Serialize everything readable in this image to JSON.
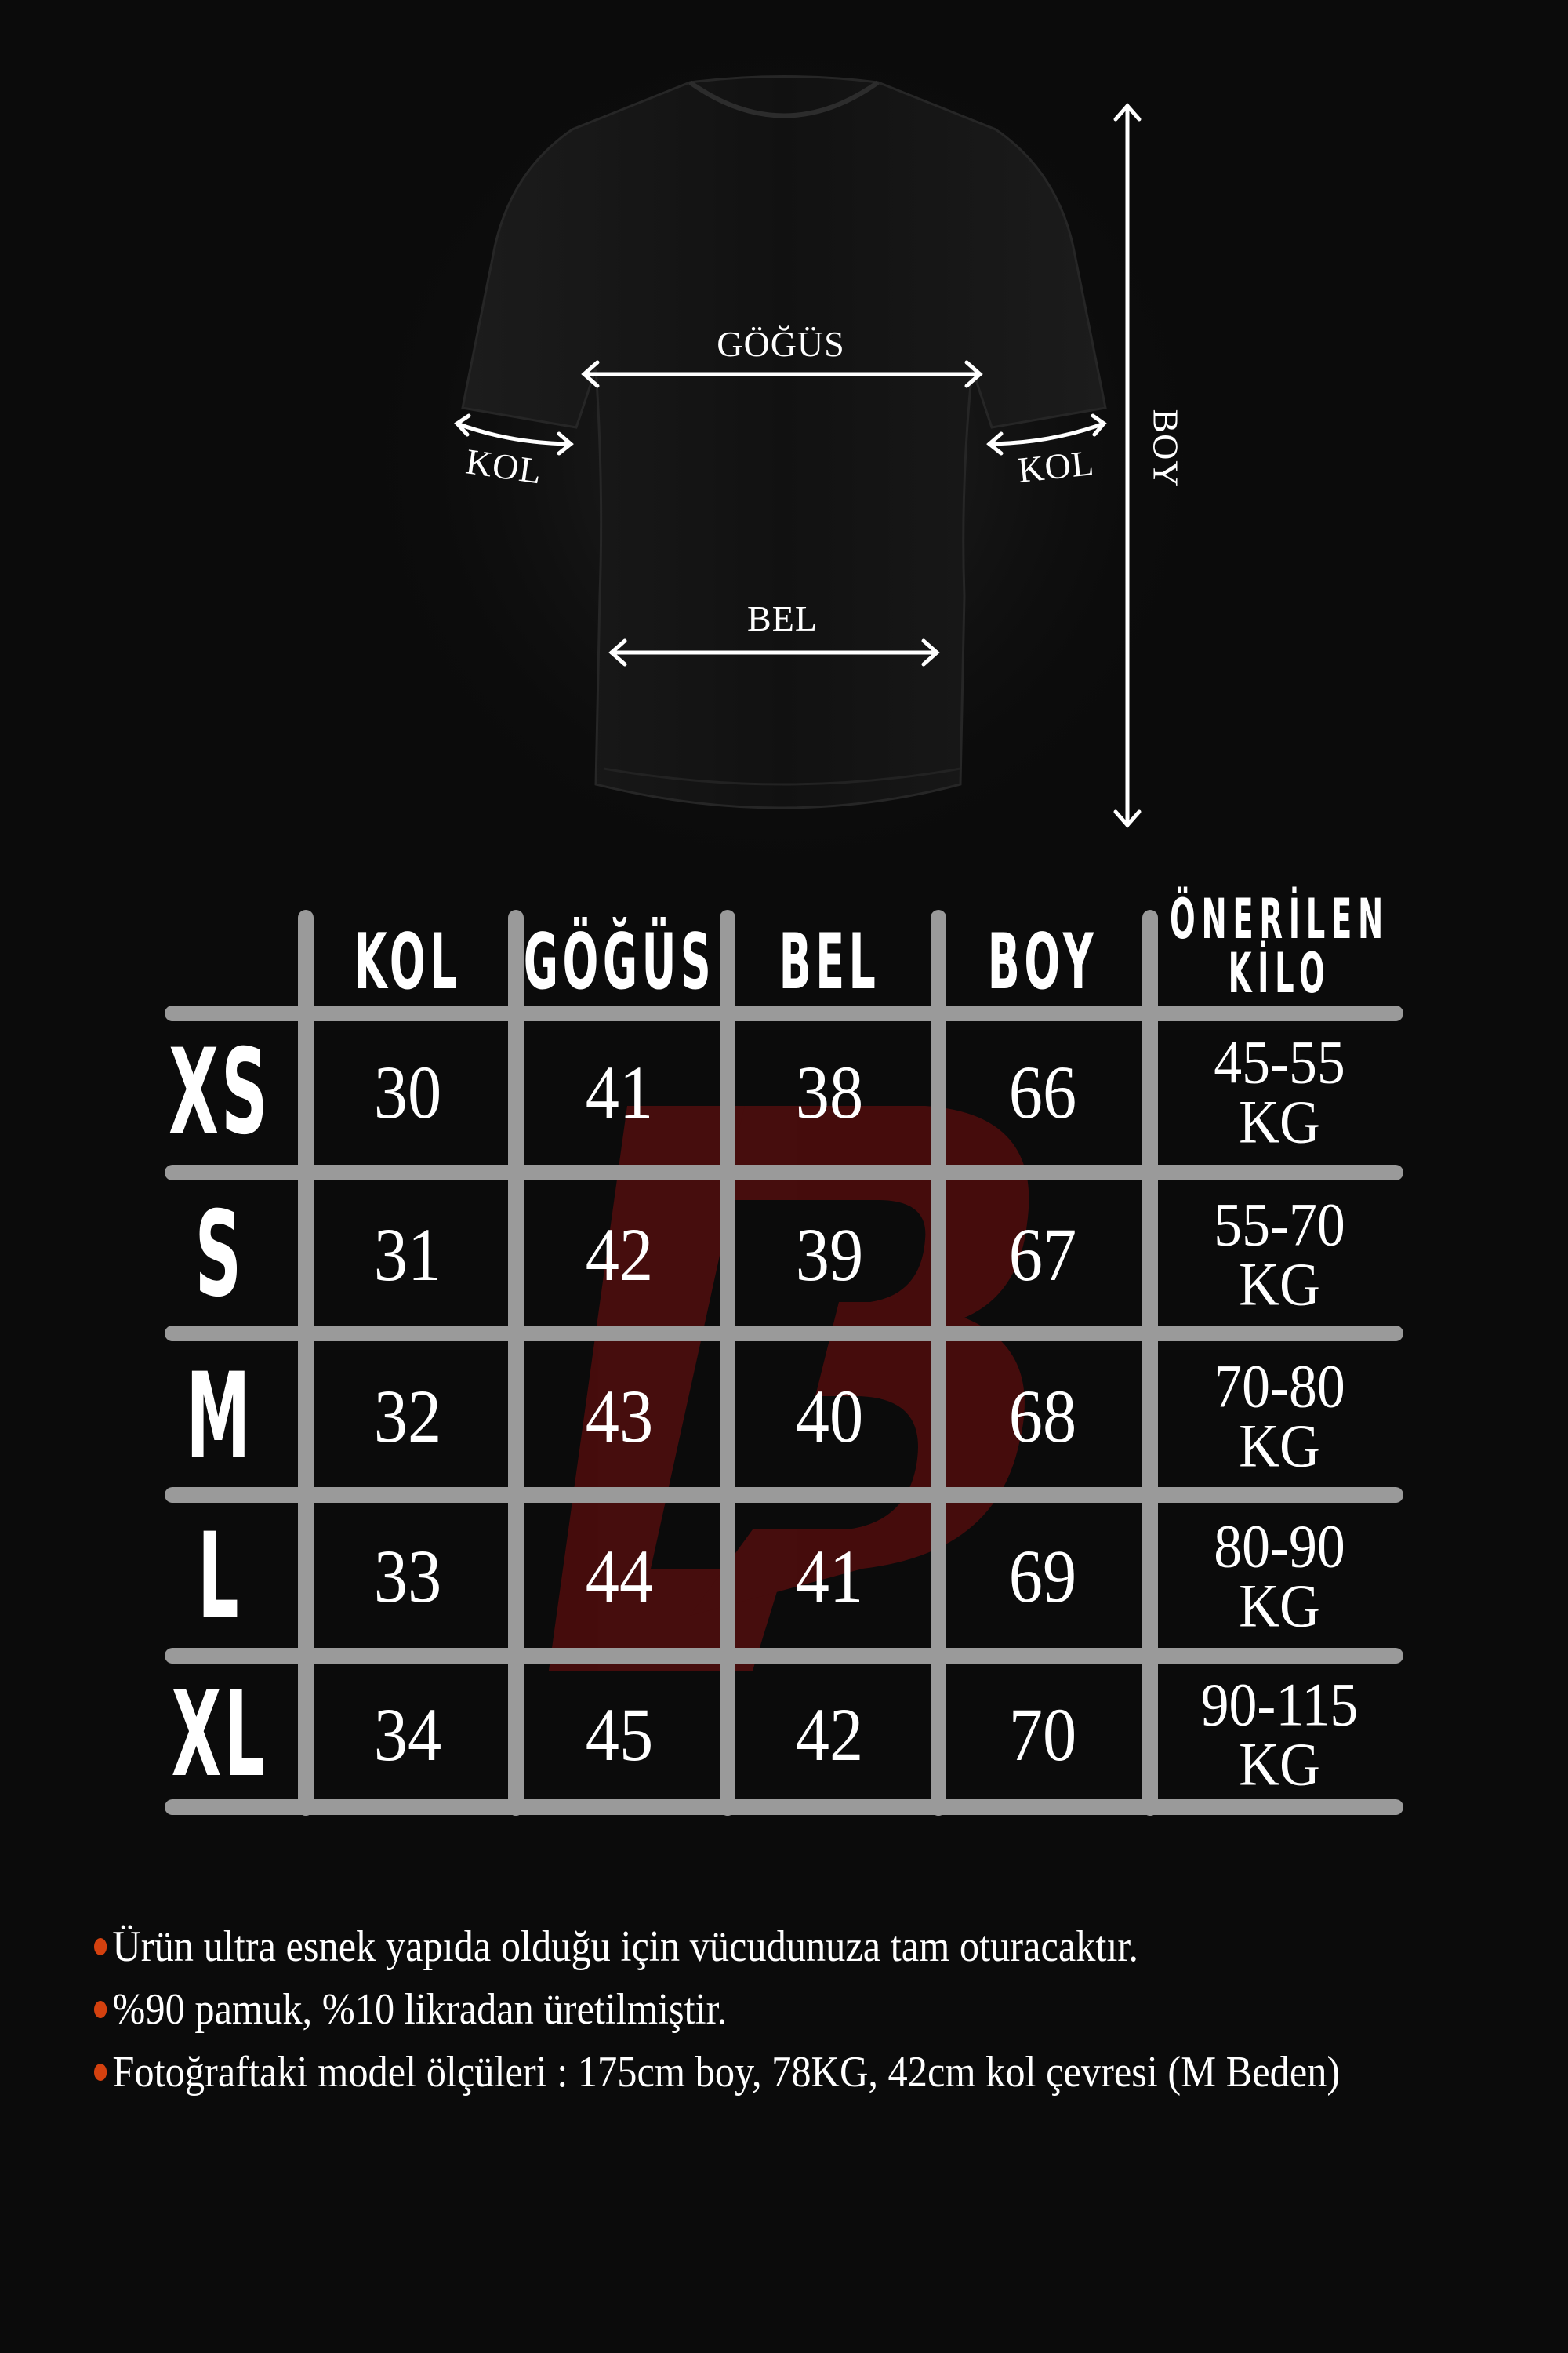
{
  "diagram": {
    "chest_label": "GÖĞÜS",
    "sleeve_left_label": "KOL",
    "sleeve_right_label": "KOL",
    "waist_label": "BEL",
    "length_label": "BOY"
  },
  "table": {
    "headers": [
      "KOL",
      "GÖĞÜS",
      "BEL",
      "BOY"
    ],
    "weight_header_line1": "ÖNERİLEN",
    "weight_header_line2": "KİLO",
    "rows": [
      {
        "size": "XS",
        "values": [
          "30",
          "41",
          "38",
          "66"
        ],
        "kg_range": "45-55",
        "kg_unit": "KG"
      },
      {
        "size": "S",
        "values": [
          "31",
          "42",
          "39",
          "67"
        ],
        "kg_range": "55-70",
        "kg_unit": "KG"
      },
      {
        "size": "M",
        "values": [
          "32",
          "43",
          "40",
          "68"
        ],
        "kg_range": "70-80",
        "kg_unit": "KG"
      },
      {
        "size": "L",
        "values": [
          "33",
          "44",
          "41",
          "69"
        ],
        "kg_range": "80-90",
        "kg_unit": "KG"
      },
      {
        "size": "XL",
        "values": [
          "34",
          "45",
          "42",
          "70"
        ],
        "kg_range": "90-115",
        "kg_unit": "KG"
      }
    ]
  },
  "notes": [
    "Ürün ultra esnek yapıda olduğu için vücudunuza tam oturacaktır.",
    "%90 pamuk, %10 likradan üretilmiştir.",
    "Fotoğraftaki model ölçüleri : 175cm boy, 78KG, 42cm kol çevresi (M Beden)"
  ],
  "colors": {
    "background": "#0b0b0b",
    "grid": "#9a9a9a",
    "bullet": "#d4410f",
    "watermark": "#5a0e0e"
  },
  "watermark_text": "LB"
}
